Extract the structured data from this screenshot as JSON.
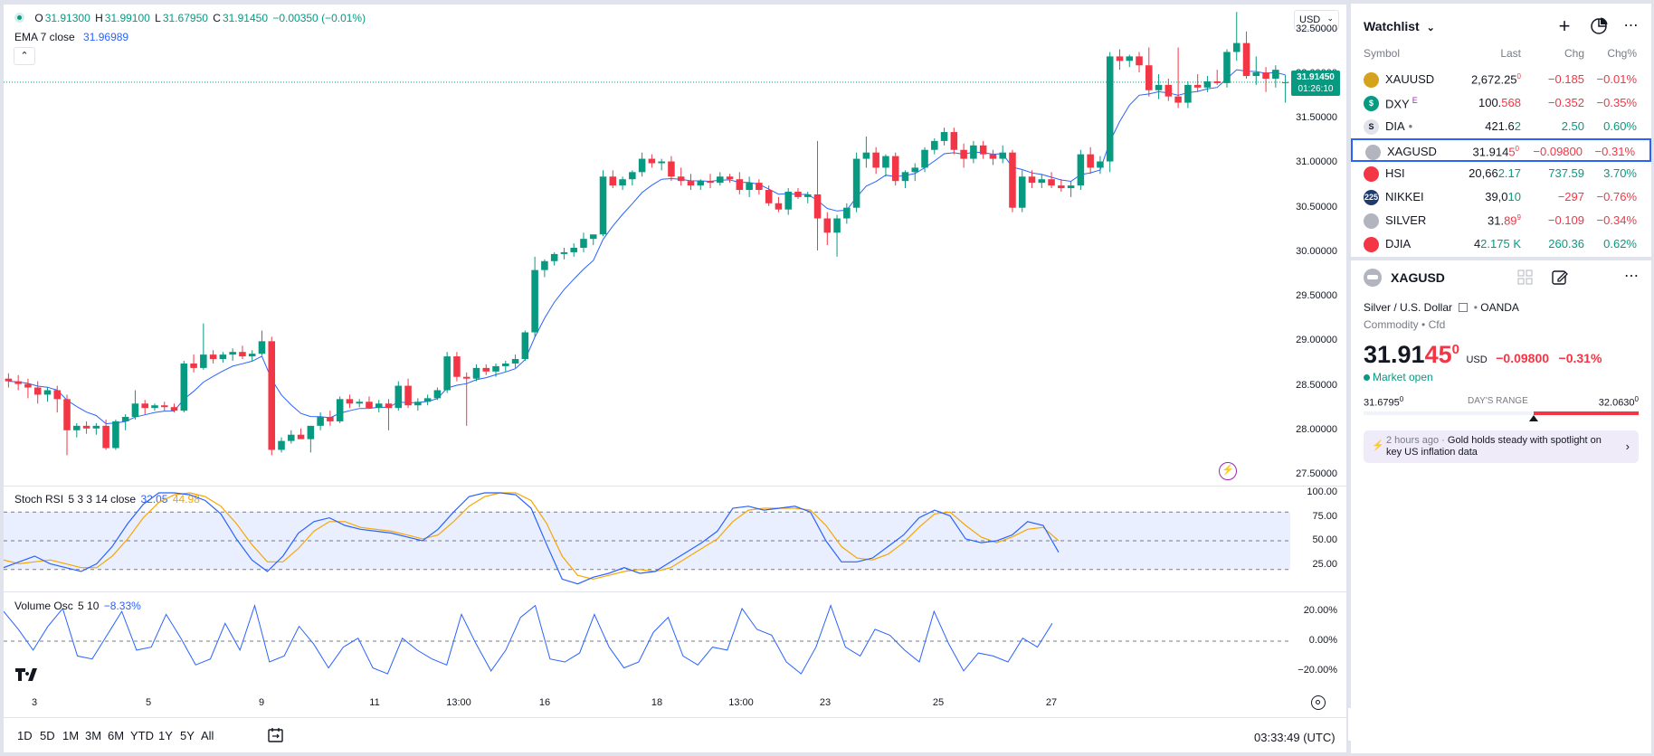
{
  "legend": {
    "o_label": "O",
    "o": "31.91300",
    "h_label": "H",
    "h": "31.99100",
    "l_label": "L",
    "l": "31.67950",
    "c_label": "C",
    "c": "31.91450",
    "change": "−0.00350 (−0.01%)",
    "ema_label": "EMA 7 close",
    "ema_value": "31.96989"
  },
  "currency": "USD",
  "price_axis": [
    "32.50000",
    "32.00000",
    "31.50000",
    "31.00000",
    "30.50000",
    "30.00000",
    "29.50000",
    "29.00000",
    "28.50000",
    "28.00000",
    "27.50000"
  ],
  "last_price_tag": {
    "price": "31.91450",
    "countdown": "01:26:10"
  },
  "stoch": {
    "label": "Stoch RSI",
    "params": "5 3 3 14 close",
    "k": "32.05",
    "d": "44.98",
    "axis": [
      "100.00",
      "75.00",
      "50.00",
      "25.00"
    ]
  },
  "volosc": {
    "label": "Volume Osc",
    "params": "5 10",
    "value": "−8.33%",
    "axis": [
      "20.00%",
      "0.00%",
      "−20.00%"
    ]
  },
  "time_axis": [
    "3",
    "5",
    "9",
    "11",
    "13:00",
    "16",
    "18",
    "13:00",
    "23",
    "25",
    "27"
  ],
  "timeframes": [
    "1D",
    "5D",
    "1M",
    "3M",
    "6M",
    "YTD",
    "1Y",
    "5Y",
    "All"
  ],
  "clock": "03:33:49 (UTC)",
  "colors": {
    "up": "#089981",
    "down": "#f23645",
    "ema": "#2962ff",
    "k": "#2962ff",
    "d": "#f7a600"
  },
  "chart_data": {
    "type": "candlestick",
    "symbol": "XAGUSD",
    "candles": [
      [
        28.58,
        28.64,
        28.48,
        28.55
      ],
      [
        28.55,
        28.62,
        28.45,
        28.52
      ],
      [
        28.52,
        28.58,
        28.36,
        28.48
      ],
      [
        28.48,
        28.55,
        28.3,
        28.4
      ],
      [
        28.4,
        28.48,
        28.32,
        28.45
      ],
      [
        28.45,
        28.5,
        28.2,
        28.35
      ],
      [
        28.35,
        28.4,
        27.72,
        28.0
      ],
      [
        28.0,
        28.08,
        27.92,
        28.05
      ],
      [
        28.05,
        28.1,
        27.96,
        28.02
      ],
      [
        28.02,
        28.08,
        27.95,
        28.05
      ],
      [
        28.05,
        28.12,
        27.78,
        27.8
      ],
      [
        27.8,
        28.12,
        27.78,
        28.1
      ],
      [
        28.1,
        28.18,
        28.0,
        28.15
      ],
      [
        28.15,
        28.45,
        28.12,
        28.3
      ],
      [
        28.3,
        28.34,
        28.18,
        28.25
      ],
      [
        28.25,
        28.3,
        28.22,
        28.28
      ],
      [
        28.28,
        28.32,
        28.22,
        28.26
      ],
      [
        28.26,
        28.3,
        28.2,
        28.22
      ],
      [
        28.22,
        28.78,
        28.2,
        28.75
      ],
      [
        28.75,
        28.85,
        28.65,
        28.7
      ],
      [
        28.7,
        29.2,
        28.68,
        28.85
      ],
      [
        28.85,
        28.9,
        28.75,
        28.8
      ],
      [
        28.8,
        28.88,
        28.76,
        28.85
      ],
      [
        28.85,
        28.92,
        28.78,
        28.88
      ],
      [
        28.88,
        28.95,
        28.8,
        28.83
      ],
      [
        28.83,
        28.9,
        28.78,
        28.86
      ],
      [
        28.86,
        29.12,
        28.84,
        29.0
      ],
      [
        29.0,
        29.05,
        27.72,
        27.78
      ],
      [
        27.78,
        27.92,
        27.75,
        27.88
      ],
      [
        27.88,
        28.0,
        27.85,
        27.95
      ],
      [
        27.95,
        28.02,
        27.9,
        27.9
      ],
      [
        27.9,
        28.05,
        27.75,
        28.05
      ],
      [
        28.05,
        28.2,
        28.0,
        28.15
      ],
      [
        28.15,
        28.22,
        28.05,
        28.1
      ],
      [
        28.1,
        28.38,
        28.08,
        28.35
      ],
      [
        28.35,
        28.4,
        28.25,
        28.3
      ],
      [
        28.3,
        28.35,
        28.26,
        28.32
      ],
      [
        28.32,
        28.38,
        28.24,
        28.25
      ],
      [
        28.25,
        28.34,
        28.2,
        28.3
      ],
      [
        28.3,
        28.35,
        28.0,
        28.25
      ],
      [
        28.25,
        28.55,
        28.22,
        28.5
      ],
      [
        28.5,
        28.58,
        28.25,
        28.28
      ],
      [
        28.28,
        28.36,
        28.22,
        28.32
      ],
      [
        28.32,
        28.4,
        28.28,
        28.36
      ],
      [
        28.36,
        28.48,
        28.34,
        28.45
      ],
      [
        28.45,
        28.88,
        28.42,
        28.83
      ],
      [
        28.83,
        28.88,
        28.55,
        28.6
      ],
      [
        28.6,
        28.65,
        28.05,
        28.58
      ],
      [
        28.58,
        28.74,
        28.55,
        28.7
      ],
      [
        28.7,
        28.74,
        28.62,
        28.66
      ],
      [
        28.66,
        28.75,
        28.6,
        28.72
      ],
      [
        28.72,
        28.78,
        28.66,
        28.75
      ],
      [
        28.75,
        28.85,
        28.7,
        28.8
      ],
      [
        28.8,
        29.12,
        28.78,
        29.1
      ],
      [
        29.1,
        29.95,
        29.05,
        29.8
      ],
      [
        29.8,
        29.92,
        29.72,
        29.9
      ],
      [
        29.9,
        30.0,
        29.85,
        29.98
      ],
      [
        29.98,
        30.05,
        29.92,
        30.0
      ],
      [
        30.0,
        30.1,
        29.95,
        30.05
      ],
      [
        30.05,
        30.22,
        30.0,
        30.15
      ],
      [
        30.15,
        30.2,
        30.08,
        30.2
      ],
      [
        30.2,
        30.92,
        30.18,
        30.85
      ],
      [
        30.85,
        30.92,
        30.72,
        30.75
      ],
      [
        30.75,
        30.85,
        30.7,
        30.82
      ],
      [
        30.82,
        30.92,
        30.75,
        30.9
      ],
      [
        30.9,
        31.12,
        30.85,
        31.05
      ],
      [
        31.05,
        31.1,
        30.95,
        31.0
      ],
      [
        31.0,
        31.05,
        30.92,
        31.02
      ],
      [
        31.02,
        31.08,
        30.8,
        30.85
      ],
      [
        30.85,
        30.95,
        30.75,
        30.8
      ],
      [
        30.8,
        30.88,
        30.7,
        30.75
      ],
      [
        30.75,
        30.82,
        30.7,
        30.8
      ],
      [
        30.8,
        30.88,
        30.72,
        30.78
      ],
      [
        30.78,
        30.9,
        30.75,
        30.85
      ],
      [
        30.85,
        30.88,
        30.78,
        30.82
      ],
      [
        30.82,
        30.9,
        30.65,
        30.7
      ],
      [
        30.7,
        30.85,
        30.62,
        30.78
      ],
      [
        30.78,
        30.82,
        30.65,
        30.7
      ],
      [
        30.7,
        30.75,
        30.52,
        30.55
      ],
      [
        30.55,
        30.62,
        30.45,
        30.48
      ],
      [
        30.48,
        30.72,
        30.42,
        30.68
      ],
      [
        30.68,
        30.72,
        30.6,
        30.62
      ],
      [
        30.62,
        30.68,
        30.55,
        30.65
      ],
      [
        30.65,
        31.25,
        30.02,
        30.38
      ],
      [
        30.38,
        30.45,
        30.08,
        30.22
      ],
      [
        30.22,
        30.42,
        29.95,
        30.38
      ],
      [
        30.38,
        30.55,
        30.32,
        30.5
      ],
      [
        30.5,
        31.12,
        30.45,
        31.05
      ],
      [
        31.05,
        31.3,
        30.95,
        31.12
      ],
      [
        31.12,
        31.18,
        30.88,
        30.95
      ],
      [
        30.95,
        31.1,
        30.85,
        31.08
      ],
      [
        31.08,
        31.12,
        30.75,
        30.8
      ],
      [
        30.8,
        30.92,
        30.72,
        30.9
      ],
      [
        30.9,
        31.0,
        30.8,
        30.95
      ],
      [
        30.95,
        31.18,
        30.9,
        31.15
      ],
      [
        31.15,
        31.28,
        31.1,
        31.25
      ],
      [
        31.25,
        31.4,
        31.2,
        31.35
      ],
      [
        31.35,
        31.4,
        31.1,
        31.15
      ],
      [
        31.15,
        31.22,
        30.95,
        31.05
      ],
      [
        31.05,
        31.25,
        31.0,
        31.2
      ],
      [
        31.2,
        31.25,
        31.05,
        31.1
      ],
      [
        31.1,
        31.15,
        30.98,
        31.05
      ],
      [
        31.05,
        31.2,
        31.0,
        31.12
      ],
      [
        31.12,
        31.15,
        30.45,
        30.5
      ],
      [
        30.5,
        30.92,
        30.45,
        30.85
      ],
      [
        30.85,
        30.92,
        30.72,
        30.78
      ],
      [
        30.78,
        30.88,
        30.72,
        30.82
      ],
      [
        30.82,
        30.9,
        30.72,
        30.75
      ],
      [
        30.75,
        30.82,
        30.68,
        30.72
      ],
      [
        30.72,
        30.8,
        30.62,
        30.75
      ],
      [
        30.75,
        31.15,
        30.7,
        31.1
      ],
      [
        31.1,
        31.18,
        30.88,
        30.95
      ],
      [
        30.95,
        31.08,
        30.88,
        31.02
      ],
      [
        31.02,
        32.25,
        30.9,
        32.2
      ],
      [
        32.2,
        32.28,
        32.05,
        32.15
      ],
      [
        32.15,
        32.22,
        32.08,
        32.2
      ],
      [
        32.2,
        32.25,
        32.02,
        32.1
      ],
      [
        32.1,
        32.3,
        31.75,
        31.82
      ],
      [
        31.82,
        32.0,
        31.72,
        31.88
      ],
      [
        31.88,
        31.95,
        31.7,
        31.75
      ],
      [
        31.75,
        32.3,
        31.62,
        31.68
      ],
      [
        31.68,
        31.92,
        31.62,
        31.88
      ],
      [
        31.88,
        32.0,
        31.8,
        31.85
      ],
      [
        31.85,
        31.98,
        31.8,
        31.92
      ],
      [
        31.92,
        32.05,
        31.88,
        31.9
      ],
      [
        31.9,
        32.28,
        31.85,
        32.25
      ],
      [
        32.25,
        32.7,
        32.15,
        32.35
      ],
      [
        32.35,
        32.48,
        31.95,
        31.98
      ],
      [
        31.98,
        32.2,
        31.88,
        32.02
      ],
      [
        32.02,
        32.08,
        31.8,
        31.95
      ],
      [
        31.95,
        32.1,
        31.85,
        32.05
      ],
      [
        31.91,
        31.99,
        31.68,
        31.91
      ]
    ],
    "ema7_last": 31.96989,
    "stoch_k": [
      22,
      28,
      34,
      26,
      22,
      18,
      26,
      44,
      68,
      88,
      100,
      100,
      98,
      92,
      78,
      52,
      30,
      18,
      34,
      58,
      70,
      74,
      66,
      62,
      60,
      58,
      54,
      50,
      62,
      80,
      96,
      100,
      100,
      98,
      84,
      46,
      10,
      5,
      12,
      16,
      22,
      16,
      18,
      28,
      38,
      48,
      60,
      84,
      86,
      82,
      84,
      86,
      80,
      50,
      28,
      28,
      32,
      44,
      56,
      74,
      82,
      76,
      52,
      48,
      50,
      56,
      70,
      66,
      38
    ],
    "stoch_d": [
      30,
      26,
      28,
      30,
      26,
      22,
      22,
      34,
      52,
      74,
      90,
      98,
      100,
      96,
      86,
      68,
      46,
      28,
      28,
      42,
      60,
      70,
      70,
      64,
      62,
      60,
      56,
      52,
      56,
      70,
      86,
      96,
      100,
      100,
      92,
      68,
      34,
      14,
      10,
      14,
      18,
      20,
      18,
      22,
      32,
      42,
      52,
      70,
      82,
      84,
      84,
      84,
      82,
      66,
      44,
      32,
      30,
      36,
      48,
      64,
      78,
      80,
      66,
      54,
      48,
      54,
      62,
      64,
      50
    ],
    "vol_osc": [
      20,
      8,
      -6,
      10,
      22,
      -10,
      -12,
      4,
      20,
      -6,
      -4,
      18,
      2,
      -16,
      -12,
      12,
      -6,
      24,
      -14,
      -10,
      10,
      -2,
      -18,
      -4,
      2,
      -18,
      -22,
      2,
      -6,
      -12,
      -16,
      18,
      -2,
      -20,
      -6,
      16,
      24,
      -12,
      -14,
      -8,
      18,
      -4,
      -18,
      -14,
      6,
      16,
      -10,
      -16,
      -4,
      -6,
      22,
      8,
      4,
      -14,
      -22,
      -4,
      24,
      -4,
      -10,
      8,
      4,
      -6,
      -14,
      20,
      -2,
      -20,
      -8,
      -10,
      -14,
      2,
      -4,
      12
    ],
    "ylim": [
      27.5,
      32.6
    ]
  },
  "watchlist": {
    "title": "Watchlist",
    "columns": [
      "Symbol",
      "Last",
      "Chg",
      "Chg%"
    ],
    "rows": [
      {
        "symbol": "XAUUSD",
        "last_main": "2,672.25",
        "last_sup": "0",
        "last_red": "",
        "chg": "−0.185",
        "chgp": "−0.01%",
        "dir": "down",
        "icon_color": "#d4a21c",
        "icon_text": ""
      },
      {
        "symbol": "DXY",
        "last_main": "100.",
        "last_sup": "",
        "last_red": "568",
        "chg": "−0.352",
        "chgp": "−0.35%",
        "dir": "down",
        "icon_color": "#089981",
        "icon_text": "$",
        "badge": "E"
      },
      {
        "symbol": "DIA",
        "last_main": "421.6",
        "last_sup": "",
        "last_red": "",
        "last_green": "2",
        "chg": "2.50",
        "chgp": "0.60%",
        "dir": "up",
        "icon_color": "#e0e3eb",
        "icon_text": "S",
        "dot": "•"
      },
      {
        "symbol": "XAGUSD",
        "last_main": "31.914",
        "last_sup": "0",
        "last_red": "5",
        "chg": "−0.09800",
        "chgp": "−0.31%",
        "dir": "down",
        "icon_color": "#b2b5be",
        "icon_text": ""
      },
      {
        "symbol": "HSI",
        "last_main": "20,66",
        "last_sup": "",
        "last_red": "",
        "last_green": "2.17",
        "chg": "737.59",
        "chgp": "3.70%",
        "dir": "up",
        "icon_color": "#f23645",
        "icon_text": ""
      },
      {
        "symbol": "NIKKEI",
        "last_main": "39,0",
        "last_sup": "",
        "last_red": "",
        "last_green": "10",
        "chg": "−297",
        "chgp": "−0.76%",
        "dir": "down",
        "icon_color": "#1e3a6e",
        "icon_text": "225"
      },
      {
        "symbol": "SILVER",
        "last_main": "31.",
        "last_sup": "9",
        "last_red": "89",
        "chg": "−0.109",
        "chgp": "−0.34%",
        "dir": "down",
        "icon_color": "#b2b5be",
        "icon_text": ""
      },
      {
        "symbol": "DJIA",
        "last_main": "4",
        "last_sup": "",
        "last_red": "",
        "last_green": "2.175 K",
        "chg": "260.36",
        "chgp": "0.62%",
        "dir": "up",
        "icon_color": "#f23645",
        "icon_text": ""
      }
    ]
  },
  "details": {
    "symbol": "XAGUSD",
    "name": "Silver / U.S. Dollar",
    "exchange": "OANDA",
    "category": "Commodity",
    "category2": "Cfd",
    "price_main": "31.91",
    "price_red": "45",
    "price_sup": "0",
    "currency": "USD",
    "change": "−0.09800",
    "change_pct": "−0.31%",
    "market_status": "Market open",
    "range_low": "31.6795",
    "range_low_sup": "0",
    "range_label": "DAY'S RANGE",
    "range_high": "32.0630",
    "range_high_sup": "0",
    "range_position": 0.62,
    "news_time": "2 hours ago",
    "news_sep": "·",
    "news_text": "Gold holds steady with spotlight on key US inflation data"
  }
}
